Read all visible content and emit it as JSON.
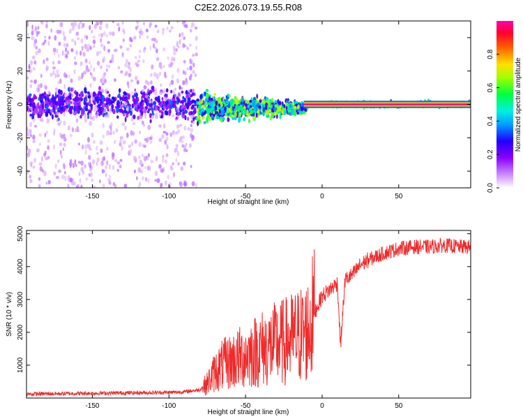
{
  "figure_title": "C2E2.2026.073.19.55.R08",
  "chart_data": [
    {
      "type": "heatmap",
      "title": "C2E2.2026.073.19.55.R08",
      "xlabel": "Height of straight line (km)",
      "ylabel": "Frequency (Hz)",
      "xlim": [
        -193,
        97
      ],
      "ylim": [
        -50,
        50
      ],
      "xticks": [
        -150,
        -100,
        -50,
        0,
        50
      ],
      "yticks": [
        -40,
        -20,
        0,
        20,
        40
      ],
      "colorbar": {
        "label": "Normalized spectral amplitude",
        "range": [
          0.0,
          1.0
        ],
        "ticks": [
          0.0,
          0.2,
          0.4,
          0.6,
          0.8
        ],
        "colormap": [
          "#f2e0ff",
          "#d9a6ff",
          "#8a00ff",
          "#1f00ff",
          "#00d0ff",
          "#00ff5a",
          "#b0ff00",
          "#ffe000",
          "#ff6000",
          "#ff0040",
          "#ff00a0"
        ]
      },
      "description_points": {
        "center_line_hz": 0,
        "noise_spread_hz_by_region": [
          {
            "x_from": -193,
            "x_to": -82,
            "spread_hz": 50,
            "core_amplitude": 0.25
          },
          {
            "x_from": -82,
            "x_to": -10,
            "spread_hz": 8,
            "core_amplitude": 0.5
          },
          {
            "x_from": -10,
            "x_to": 97,
            "spread_hz": 2,
            "core_amplitude": 0.95
          }
        ]
      }
    },
    {
      "type": "line",
      "xlabel": "Height of straight line (km)",
      "ylabel": "SNR (10 * v/v)",
      "xlim": [
        -193,
        97
      ],
      "ylim": [
        0,
        5100
      ],
      "xticks": [
        -150,
        -100,
        -50,
        0,
        50
      ],
      "yticks": [
        1000,
        2000,
        3000,
        4000,
        5000
      ],
      "series": [
        {
          "name": "SNR",
          "color": "#ee2b2b",
          "x": [
            -193,
            -180,
            -160,
            -140,
            -120,
            -100,
            -90,
            -80,
            -75,
            -70,
            -65,
            -60,
            -55,
            -50,
            -45,
            -40,
            -35,
            -30,
            -25,
            -20,
            -15,
            -10,
            -5,
            0,
            5,
            10,
            12,
            15,
            20,
            25,
            30,
            40,
            50,
            60,
            70,
            80,
            90,
            97
          ],
          "values": [
            120,
            130,
            140,
            150,
            160,
            170,
            190,
            250,
            450,
            800,
            1000,
            1100,
            1200,
            1300,
            1400,
            1500,
            1550,
            1650,
            1700,
            1800,
            1900,
            2000,
            2600,
            3100,
            3300,
            3500,
            1600,
            3600,
            3750,
            4050,
            4200,
            4400,
            4550,
            4600,
            4600,
            4650,
            4600,
            4600
          ]
        }
      ]
    }
  ]
}
